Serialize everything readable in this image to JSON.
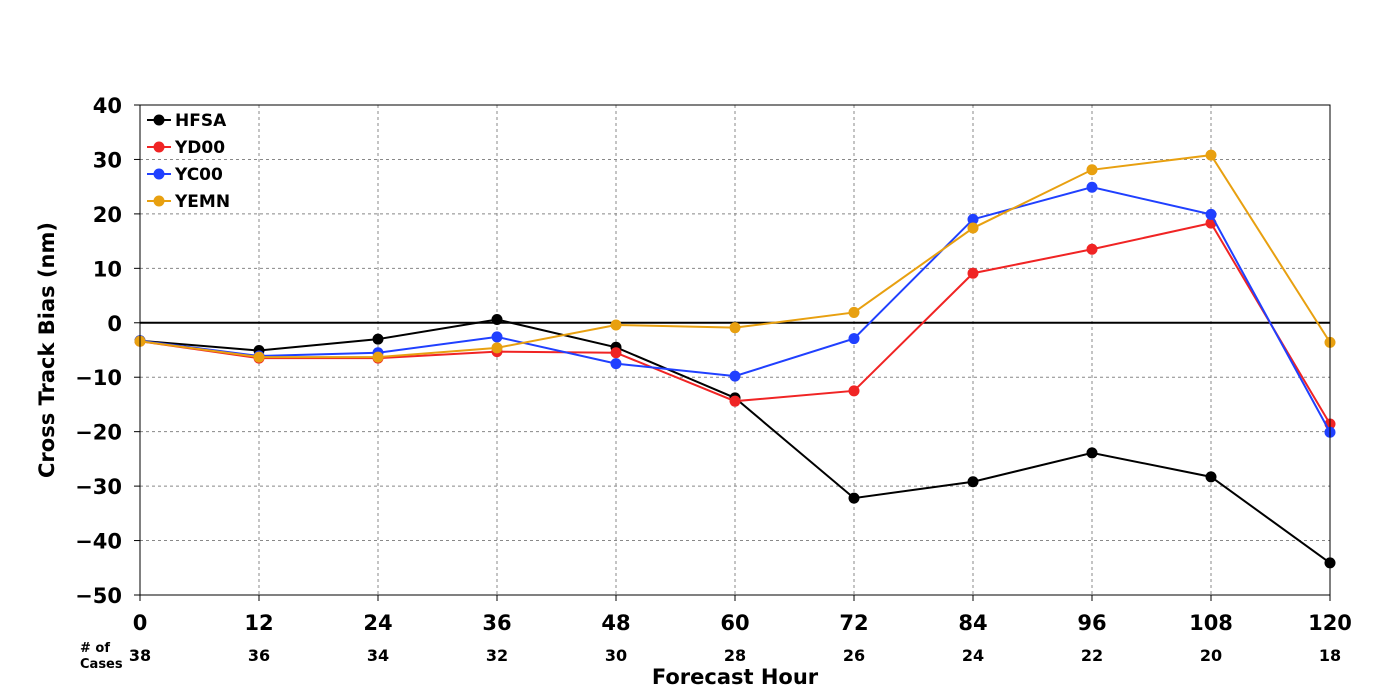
{
  "chart_data": {
    "type": "line",
    "title": "",
    "xlabel": "Forecast Hour",
    "ylabel": "Cross Track Bias (nm)",
    "xlim": [
      0,
      120
    ],
    "ylim": [
      -50,
      40
    ],
    "x": [
      0,
      12,
      24,
      36,
      48,
      60,
      72,
      84,
      96,
      108,
      120
    ],
    "x_tick_labels": [
      "0",
      "12",
      "24",
      "36",
      "48",
      "60",
      "72",
      "84",
      "96",
      "108",
      "120"
    ],
    "y_ticks": [
      40,
      30,
      20,
      10,
      0,
      -10,
      -20,
      -30,
      -40,
      -50
    ],
    "y_tick_labels": [
      "40",
      "30",
      "20",
      "10",
      "0",
      "−10",
      "−20",
      "−30",
      "−40",
      "−50"
    ],
    "grid": true,
    "legend_position": "top-left",
    "cases_label": [
      "# of",
      "Cases"
    ],
    "cases": [
      "38",
      "36",
      "34",
      "32",
      "30",
      "28",
      "26",
      "24",
      "22",
      "20",
      "18"
    ],
    "series": [
      {
        "name": "HFSA",
        "color": "#000000",
        "values": [
          -3.3,
          -5.1,
          -3.0,
          0.6,
          -4.5,
          -13.8,
          -32.2,
          -29.2,
          -23.9,
          -28.3,
          -44.1
        ]
      },
      {
        "name": "YD00",
        "color": "#f02424",
        "values": [
          -3.4,
          -6.5,
          -6.5,
          -5.3,
          -5.5,
          -14.4,
          -12.5,
          9.1,
          13.5,
          18.3,
          -18.6
        ]
      },
      {
        "name": "YC00",
        "color": "#2040ff",
        "values": [
          -3.3,
          -6.1,
          -5.5,
          -2.6,
          -7.5,
          -9.8,
          -2.9,
          19.0,
          24.9,
          19.9,
          -20.1
        ]
      },
      {
        "name": "YEMN",
        "color": "#e8a010",
        "values": [
          -3.4,
          -6.3,
          -6.3,
          -4.6,
          -0.4,
          -0.9,
          1.9,
          17.4,
          28.1,
          30.8,
          -3.6
        ]
      }
    ]
  }
}
